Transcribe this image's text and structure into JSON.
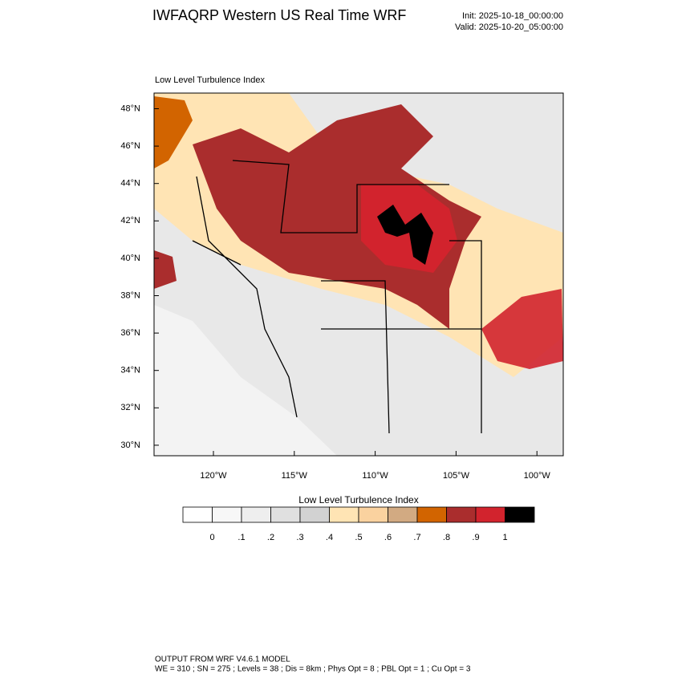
{
  "header": {
    "title": "IWFAQRP Western US Real Time WRF",
    "init": "Init: 2025-10-18_00:00:00",
    "valid": "Valid: 2025-10-20_05:00:00"
  },
  "map": {
    "subtitle": "Low Level Turbulence Index",
    "lat_labels": [
      "48°N",
      "46°N",
      "44°N",
      "42°N",
      "40°N",
      "38°N",
      "36°N",
      "34°N",
      "32°N",
      "30°N"
    ],
    "lon_labels": [
      "120°W",
      "115°W",
      "110°W",
      "105°W",
      "100°W"
    ]
  },
  "colorbar": {
    "title": "Low Level Turbulence Index",
    "colors": [
      "#ffffff",
      "#f7f7f7",
      "#eeeeee",
      "#e0e0e0",
      "#d2d2d2",
      "#ffe4b4",
      "#fad29f",
      "#d2aa82",
      "#d26400",
      "#aa2d2d",
      "#d2232d",
      "#000000"
    ],
    "labels": [
      "0",
      ".1",
      ".2",
      ".3",
      ".4",
      ".5",
      ".6",
      ".7",
      ".8",
      ".9",
      "1"
    ]
  },
  "footer": {
    "line1": "OUTPUT FROM WRF V4.6.1 MODEL",
    "line2": "WE = 310 ; SN = 275 ; Levels = 38 ; Dis = 8km ; Phys Opt = 8 ; PBL Opt = 1 ; Cu Opt = 3"
  }
}
